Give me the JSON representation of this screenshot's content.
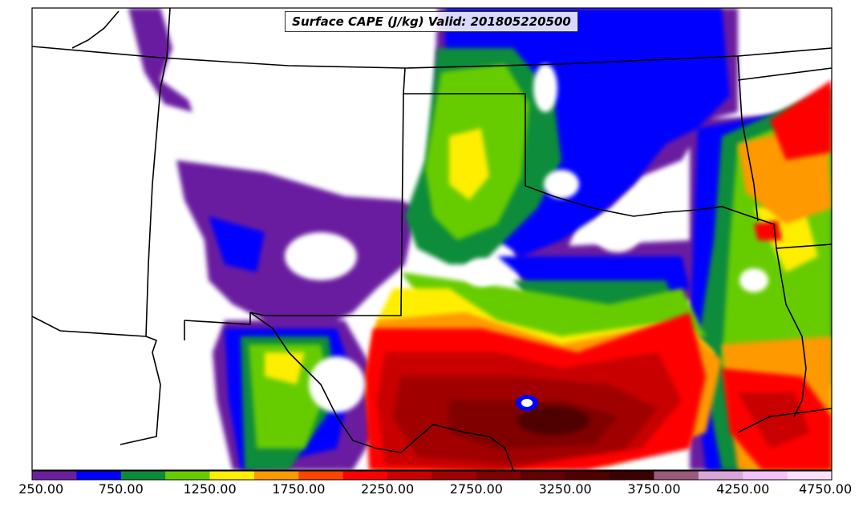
{
  "title": "Surface CAPE (J/kg) Valid: 201805220500",
  "colorbar": {
    "min": 250,
    "max": 4750,
    "step": 250,
    "tick_labels": [
      "250.00",
      "750.00",
      "1250.00",
      "1750.00",
      "2250.00",
      "2750.00",
      "3250.00",
      "3750.00",
      "4250.00",
      "4750.00"
    ],
    "colors": [
      "#6a1fa0",
      "#0000ff",
      "#0a8c3a",
      "#66cc00",
      "#ffee00",
      "#ff9900",
      "#ff4400",
      "#ff0000",
      "#c80000",
      "#a00000",
      "#800000",
      "#640000",
      "#500000",
      "#3c0000",
      "#9a5a7a",
      "#d9a6d9",
      "#f5c2f5",
      "#fde1fd"
    ]
  }
}
